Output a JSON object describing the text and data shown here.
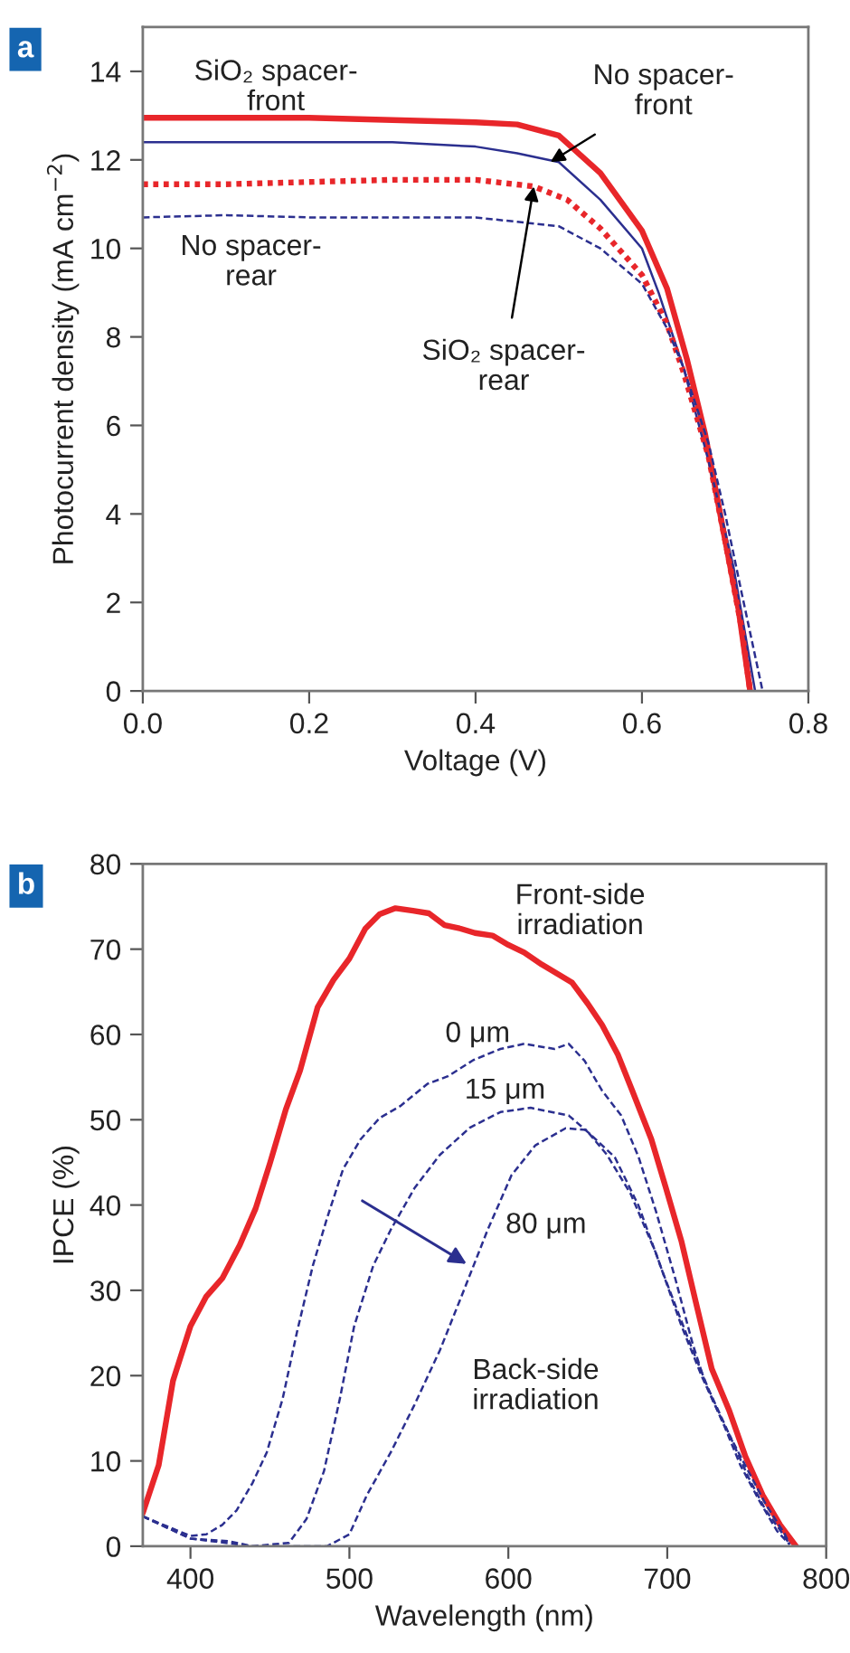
{
  "chart_data": [
    {
      "type": "line",
      "title": "a",
      "xlabel": "Voltage (V)",
      "ylabel": "Photocurrent density (mA cm$^{−2}$)",
      "xlim": [
        0,
        0.8
      ],
      "ylim": [
        0,
        15
      ],
      "xticks": [
        {
          "value": 0,
          "label": "0.0"
        },
        {
          "value": 0.2,
          "label": "0.2"
        },
        {
          "value": 0.4,
          "label": "0.4"
        },
        {
          "value": 0.6,
          "label": "0.6"
        },
        {
          "value": 0.8,
          "label": "0.8"
        }
      ],
      "yticks": [
        0,
        2,
        4,
        6,
        8,
        10,
        12,
        14
      ],
      "grid": false,
      "series": [
        {
          "color": "#e8262a",
          "line_style": "solid",
          "x": [
            0,
            0.1,
            0.2,
            0.3,
            0.4,
            0.45,
            0.5,
            0.55,
            0.6,
            0.63,
            0.654,
            0.676,
            0.698,
            0.716,
            0.73
          ],
          "values": [
            12.95,
            12.95,
            12.95,
            12.9,
            12.85,
            12.8,
            12.55,
            11.7,
            10.4,
            9.1,
            7.5,
            5.8,
            3.6,
            1.85,
            0
          ]
        },
        {
          "color": "#2b2f8f",
          "line_style": "solid",
          "x": [
            0,
            0.1,
            0.2,
            0.3,
            0.4,
            0.45,
            0.5,
            0.55,
            0.6,
            0.62,
            0.65,
            0.68,
            0.71,
            0.736
          ],
          "values": [
            12.4,
            12.4,
            12.4,
            12.4,
            12.3,
            12.15,
            11.95,
            11.1,
            10.0,
            9.0,
            7.3,
            5.2,
            2.8,
            0
          ]
        },
        {
          "color": "#e8262a",
          "line_style": "dotted",
          "x": [
            0,
            0.1,
            0.2,
            0.3,
            0.4,
            0.47,
            0.51,
            0.55,
            0.6,
            0.63,
            0.65,
            0.68,
            0.7,
            0.72,
            0.73
          ],
          "values": [
            11.45,
            11.45,
            11.5,
            11.55,
            11.55,
            11.4,
            11.1,
            10.45,
            9.4,
            8.3,
            7.2,
            5.3,
            3.4,
            1.4,
            0
          ]
        },
        {
          "color": "#2b2f8f",
          "line_style": "dashed",
          "x": [
            0,
            0.1,
            0.2,
            0.3,
            0.4,
            0.45,
            0.5,
            0.55,
            0.6,
            0.63,
            0.65,
            0.68,
            0.7,
            0.72,
            0.745
          ],
          "values": [
            10.7,
            10.75,
            10.7,
            10.7,
            10.7,
            10.6,
            10.5,
            10.0,
            9.2,
            8.2,
            7.3,
            5.6,
            4.0,
            2.2,
            0
          ]
        }
      ],
      "annotations": [
        {
          "text": "SiO₂ spacer-\nfront",
          "x": 0.16,
          "y": 12.95
        },
        {
          "text": "No spacer-\nfront",
          "x": 0.49,
          "y": 11.95
        },
        {
          "text": "No spacer-\nrear",
          "x": 0.13,
          "y": 10.7
        },
        {
          "text": "SiO₂ spacer-\nrear",
          "x": 0.47,
          "y": 11.4
        }
      ]
    },
    {
      "type": "line",
      "title": "b",
      "xlabel": "Wavelength (nm)",
      "ylabel": "IPCE (%)",
      "xlim": [
        370,
        800
      ],
      "ylim": [
        0,
        80
      ],
      "xticks": [
        400,
        500,
        600,
        700,
        800
      ],
      "yticks": [
        0,
        10,
        20,
        30,
        40,
        50,
        60,
        70,
        80
      ],
      "grid": false,
      "series": [
        {
          "color": "#e8262a",
          "line_style": "solid",
          "x": [
            370,
            380,
            389,
            400,
            410,
            420,
            431,
            441,
            450,
            460,
            469,
            480,
            490,
            500,
            510,
            519,
            529,
            540,
            550,
            560,
            570,
            579,
            590,
            600,
            610,
            621,
            631,
            640,
            650,
            659,
            669,
            678,
            690,
            699,
            709,
            718,
            728,
            739,
            749,
            760,
            771,
            781
          ],
          "values": [
            3.9,
            9.5,
            19.4,
            25.8,
            29.3,
            31.4,
            35.3,
            39.6,
            44.9,
            51.2,
            55.8,
            63.2,
            66.4,
            68.9,
            72.4,
            74.1,
            74.8,
            74.5,
            74.2,
            72.8,
            72.4,
            71.9,
            71.6,
            70.5,
            69.6,
            68.2,
            67.1,
            66.1,
            63.6,
            61.1,
            57.6,
            53.4,
            47.7,
            42.1,
            35.7,
            28.6,
            20.8,
            15.9,
            10.6,
            6.0,
            2.5,
            0
          ]
        },
        {
          "color": "#2b2f8f",
          "line_style": "dashed",
          "x": [
            370,
            400,
            410,
            420,
            429,
            439,
            448,
            458,
            467,
            477,
            486,
            496,
            507,
            519,
            532,
            549,
            562,
            578,
            595,
            610,
            629,
            638,
            648,
            659,
            671,
            682,
            693,
            705,
            716,
            724,
            735,
            746,
            758,
            769,
            777
          ],
          "values": [
            3.5,
            1.2,
            1.4,
            2.5,
            4.2,
            7.4,
            11.0,
            17.3,
            25.1,
            32.9,
            38.5,
            44.2,
            47.7,
            50.2,
            51.6,
            54.2,
            55.1,
            57.0,
            58.3,
            58.9,
            58.3,
            58.9,
            56.9,
            53.4,
            50.5,
            45.6,
            39.2,
            31.4,
            23.7,
            19.1,
            14.5,
            9.5,
            5.3,
            1.8,
            0.2
          ]
        },
        {
          "color": "#2b2f8f",
          "line_style": "dashed",
          "x": [
            370,
            400,
            424,
            439,
            462,
            473,
            484,
            494,
            503,
            515,
            526,
            541,
            557,
            576,
            595,
            614,
            638,
            651,
            667,
            682,
            697,
            713,
            726,
            739,
            751,
            762,
            774,
            777
          ],
          "values": [
            3.5,
            0.9,
            0.6,
            0,
            0.4,
            3.2,
            8.8,
            17.3,
            25.8,
            32.9,
            37.1,
            42.0,
            45.9,
            49.1,
            50.9,
            51.4,
            50.5,
            48.4,
            45.6,
            39.9,
            32.2,
            24.4,
            18.4,
            13.1,
            8.1,
            4.2,
            1.1,
            0.2
          ]
        },
        {
          "color": "#2b2f8f",
          "line_style": "dashed",
          "x": [
            370,
            400,
            439,
            486,
            500,
            511,
            526,
            541,
            557,
            572,
            587,
            602,
            617,
            636,
            649,
            662,
            677,
            693,
            709,
            722,
            735,
            749,
            762,
            774,
            777
          ],
          "values": [
            3.5,
            0.9,
            0,
            0,
            1.4,
            6.0,
            11.0,
            16.6,
            23.0,
            30.0,
            37.1,
            43.5,
            47.0,
            49.0,
            48.8,
            45.9,
            41.3,
            34.3,
            25.8,
            19.8,
            14.5,
            9.5,
            4.9,
            1.4,
            0.2
          ]
        }
      ],
      "annotations": [
        "Front-side\nirradiation",
        "0 μm",
        "15 μm",
        "80 μm",
        "Back-side\nirradiation"
      ]
    }
  ]
}
